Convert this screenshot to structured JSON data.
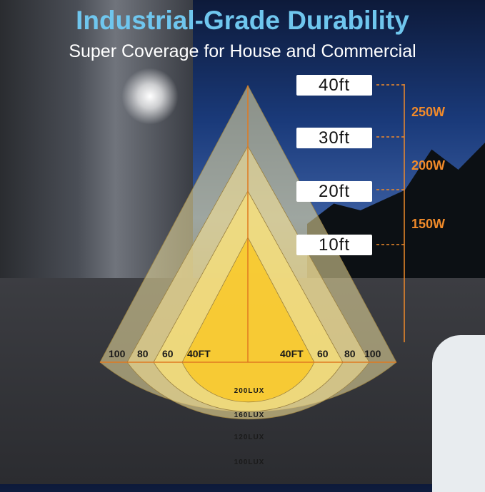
{
  "title": "Industrial-Grade Durability",
  "subtitle": "Super Coverage for House and Commercial",
  "heights": [
    "40ft",
    "30ft",
    "20ft",
    "10ft"
  ],
  "wattages": [
    "250W",
    "200W",
    "150W"
  ],
  "ground_labels_left": [
    "100",
    "80",
    "60",
    "40FT"
  ],
  "ground_labels_right": [
    "40FT",
    "60",
    "80",
    "100"
  ],
  "lux_labels": [
    "200LUX",
    "160LUX",
    "120LUX",
    "100LUX"
  ],
  "colors": {
    "title": "#6fc6ee",
    "accent": "#f08a2a",
    "cone_inner": "#f5c830",
    "cone_outer": "#f0e0a0"
  }
}
